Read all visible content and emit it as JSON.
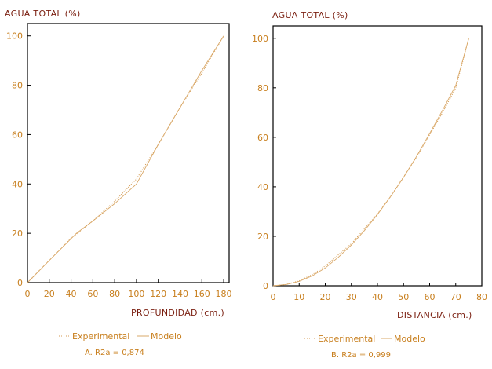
{
  "colors": {
    "frame": "#000000",
    "experimental": "#d49a50",
    "modelo": "#d9a868",
    "text": "#c87f1e",
    "title": "#7a1f10"
  },
  "chart_data": [
    {
      "type": "line",
      "title": "AGUA TOTAL (%)",
      "xlabel": "PROFUNDIDAD (cm.)",
      "ylabel": "",
      "xlim": [
        0,
        185
      ],
      "ylim": [
        0,
        105
      ],
      "xticks": [
        "0",
        "20",
        "40",
        "60",
        "80",
        "100",
        "120",
        "140",
        "160",
        "180"
      ],
      "yticks": [
        "0",
        "20",
        "40",
        "60",
        "80",
        "100"
      ],
      "series": [
        {
          "name": "Experimental",
          "style": "dotted",
          "x": [
            0,
            20,
            40,
            60,
            80,
            100,
            120,
            140,
            160,
            180
          ],
          "y": [
            0,
            9,
            18,
            25,
            33,
            42,
            56,
            71,
            85,
            100
          ]
        },
        {
          "name": "Modelo",
          "style": "solid",
          "x": [
            0,
            20,
            45,
            60,
            80,
            100,
            120,
            140,
            160,
            180
          ],
          "y": [
            0,
            9,
            20,
            25,
            32,
            40,
            56,
            71,
            86,
            100
          ]
        }
      ],
      "legend": {
        "experimental": "Experimental",
        "modelo": "Modelo"
      },
      "caption": "A.  R2a = 0,874"
    },
    {
      "type": "line",
      "title": "AGUA TOTAL (%)",
      "xlabel": "DISTANCIA (cm.)",
      "ylabel": "",
      "xlim": [
        0,
        80
      ],
      "ylim": [
        0,
        105
      ],
      "xticks": [
        "0",
        "10",
        "20",
        "30",
        "40",
        "50",
        "60",
        "70",
        "80"
      ],
      "yticks": [
        "0",
        "20",
        "40",
        "60",
        "80",
        "100"
      ],
      "series": [
        {
          "name": "Experimental",
          "style": "dotted",
          "x": [
            0,
            5,
            10,
            15,
            20,
            25,
            30,
            35,
            40,
            45,
            50,
            55,
            60,
            65,
            70,
            75
          ],
          "y": [
            0,
            0.5,
            2,
            4.5,
            8,
            12.5,
            17,
            23,
            29,
            36,
            44,
            52,
            61,
            70,
            80,
            100
          ]
        },
        {
          "name": "Modelo",
          "style": "solid",
          "x": [
            0,
            5,
            10,
            15,
            20,
            25,
            30,
            35,
            40,
            45,
            50,
            55,
            60,
            65,
            70,
            75
          ],
          "y": [
            0,
            0.5,
            1.8,
            4,
            7.2,
            11.5,
            16.5,
            22.3,
            28.8,
            36,
            43.8,
            52.3,
            61.5,
            71,
            81,
            100
          ]
        }
      ],
      "legend": {
        "experimental": "Experimental",
        "modelo": "Modelo"
      },
      "caption": "B.  R2a = 0,999"
    }
  ]
}
